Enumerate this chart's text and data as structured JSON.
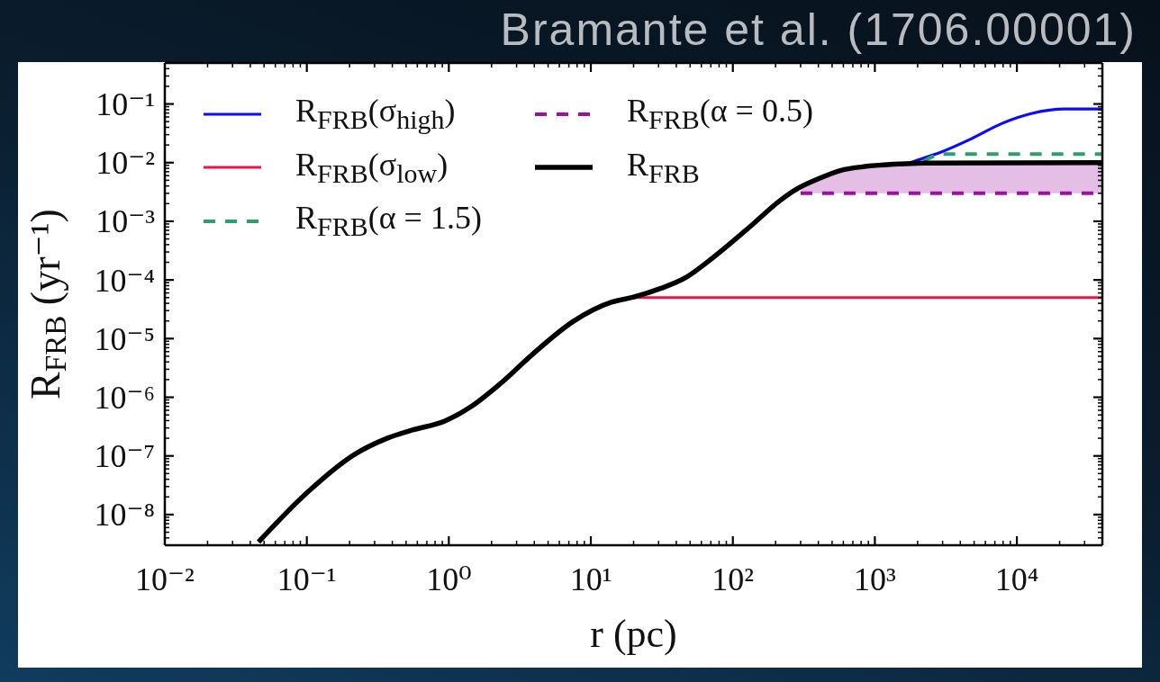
{
  "chart_data": {
    "type": "line",
    "ylabel": "R$_{FRB}$ (yr⁻¹)",
    "xlabel": "r (pc)",
    "annotations": [
      "Bramante et al. (1706.00001)"
    ],
    "log": "xy",
    "legend": "top left",
    "marker": "none",
    "xlim": [
      0.01,
      40000
    ],
    "ylim": [
      3e-09,
      0.5
    ],
    "xticks": [
      {
        "value": 0.01,
        "label": "10⁻²"
      },
      {
        "value": 0.02,
        "label": null
      },
      {
        "value": 0.03,
        "label": null
      },
      {
        "value": 0.04,
        "label": null
      },
      {
        "value": 0.05,
        "label": null
      },
      {
        "value": 0.06,
        "label": null
      },
      {
        "value": 0.07,
        "label": null
      },
      {
        "value": 0.08,
        "label": null
      },
      {
        "value": 0.09,
        "label": null
      },
      {
        "value": 0.1,
        "label": "10⁻¹"
      },
      {
        "value": 0.2,
        "label": null
      },
      {
        "value": 0.3,
        "label": null
      },
      {
        "value": 0.4,
        "label": null
      },
      {
        "value": 0.5,
        "label": null
      },
      {
        "value": 0.6,
        "label": null
      },
      {
        "value": 0.7,
        "label": null
      },
      {
        "value": 0.8,
        "label": null
      },
      {
        "value": 0.9,
        "label": null
      },
      {
        "value": 1,
        "label": "10⁰"
      },
      {
        "value": 2,
        "label": null
      },
      {
        "value": 3,
        "label": null
      },
      {
        "value": 4,
        "label": null
      },
      {
        "value": 5,
        "label": null
      },
      {
        "value": 6,
        "label": null
      },
      {
        "value": 7,
        "label": null
      },
      {
        "value": 8,
        "label": null
      },
      {
        "value": 9,
        "label": null
      },
      {
        "value": 10,
        "label": "10¹"
      },
      {
        "value": 20,
        "label": null
      },
      {
        "value": 30,
        "label": null
      },
      {
        "value": 40,
        "label": null
      },
      {
        "value": 50,
        "label": null
      },
      {
        "value": 60,
        "label": null
      },
      {
        "value": 70,
        "label": null
      },
      {
        "value": 80,
        "label": null
      },
      {
        "value": 90,
        "label": null
      },
      {
        "value": 100,
        "label": "10²"
      },
      {
        "value": 200,
        "label": null
      },
      {
        "value": 300,
        "label": null
      },
      {
        "value": 400,
        "label": null
      },
      {
        "value": 500,
        "label": null
      },
      {
        "value": 600,
        "label": null
      },
      {
        "value": 700,
        "label": null
      },
      {
        "value": 800,
        "label": null
      },
      {
        "value": 900,
        "label": null
      },
      {
        "value": 1000,
        "label": "10³"
      },
      {
        "value": 2000,
        "label": null
      },
      {
        "value": 3000,
        "label": null
      },
      {
        "value": 4000,
        "label": null
      },
      {
        "value": 5000,
        "label": null
      },
      {
        "value": 6000,
        "label": null
      },
      {
        "value": 7000,
        "label": null
      },
      {
        "value": 8000,
        "label": null
      },
      {
        "value": 9000,
        "label": null
      },
      {
        "value": 10000,
        "label": "10⁴"
      },
      {
        "value": 20000,
        "label": null
      },
      {
        "value": 30000,
        "label": null
      }
    ],
    "yticks": [
      {
        "value": 4e-09,
        "label": null
      },
      {
        "value": 5e-09,
        "label": null
      },
      {
        "value": 6e-09,
        "label": null
      },
      {
        "value": 7e-09,
        "label": null
      },
      {
        "value": 8e-09,
        "label": null
      },
      {
        "value": 9e-09,
        "label": null
      },
      {
        "value": 1e-08,
        "label": "10⁻⁸"
      },
      {
        "value": 2e-08,
        "label": null
      },
      {
        "value": 3e-08,
        "label": null
      },
      {
        "value": 4e-08,
        "label": null
      },
      {
        "value": 5e-08,
        "label": null
      },
      {
        "value": 6e-08,
        "label": null
      },
      {
        "value": 7e-08,
        "label": null
      },
      {
        "value": 8e-08,
        "label": null
      },
      {
        "value": 9e-08,
        "label": null
      },
      {
        "value": 1e-07,
        "label": "10⁻⁷"
      },
      {
        "value": 2e-07,
        "label": null
      },
      {
        "value": 3e-07,
        "label": null
      },
      {
        "value": 4e-07,
        "label": null
      },
      {
        "value": 5e-07,
        "label": null
      },
      {
        "value": 6e-07,
        "label": null
      },
      {
        "value": 7e-07,
        "label": null
      },
      {
        "value": 8e-07,
        "label": null
      },
      {
        "value": 9e-07,
        "label": null
      },
      {
        "value": 1e-06,
        "label": "10⁻⁶"
      },
      {
        "value": 2e-06,
        "label": null
      },
      {
        "value": 3e-06,
        "label": null
      },
      {
        "value": 4e-06,
        "label": null
      },
      {
        "value": 5e-06,
        "label": null
      },
      {
        "value": 6e-06,
        "label": null
      },
      {
        "value": 7e-06,
        "label": null
      },
      {
        "value": 8e-06,
        "label": null
      },
      {
        "value": 9e-06,
        "label": null
      },
      {
        "value": 1e-05,
        "label": "10⁻⁵"
      },
      {
        "value": 2e-05,
        "label": null
      },
      {
        "value": 3e-05,
        "label": null
      },
      {
        "value": 4e-05,
        "label": null
      },
      {
        "value": 5e-05,
        "label": null
      },
      {
        "value": 6e-05,
        "label": null
      },
      {
        "value": 7e-05,
        "label": null
      },
      {
        "value": 8e-05,
        "label": null
      },
      {
        "value": 9e-05,
        "label": null
      },
      {
        "value": 0.0001,
        "label": "10⁻⁴"
      },
      {
        "value": 0.0002,
        "label": null
      },
      {
        "value": 0.0003,
        "label": null
      },
      {
        "value": 0.0004,
        "label": null
      },
      {
        "value": 0.0005,
        "label": null
      },
      {
        "value": 0.0006,
        "label": null
      },
      {
        "value": 0.0007,
        "label": null
      },
      {
        "value": 0.0008,
        "label": null
      },
      {
        "value": 0.0009,
        "label": null
      },
      {
        "value": 0.001,
        "label": "10⁻³"
      },
      {
        "value": 0.002,
        "label": null
      },
      {
        "value": 0.003,
        "label": null
      },
      {
        "value": 0.004,
        "label": null
      },
      {
        "value": 0.005,
        "label": null
      },
      {
        "value": 0.006,
        "label": null
      },
      {
        "value": 0.007,
        "label": null
      },
      {
        "value": 0.008,
        "label": null
      },
      {
        "value": 0.009,
        "label": null
      },
      {
        "value": 0.01,
        "label": "10⁻²"
      },
      {
        "value": 0.02,
        "label": null
      },
      {
        "value": 0.03,
        "label": null
      },
      {
        "value": 0.04,
        "label": null
      },
      {
        "value": 0.05,
        "label": null
      },
      {
        "value": 0.06,
        "label": null
      },
      {
        "value": 0.07,
        "label": null
      },
      {
        "value": 0.08,
        "label": null
      },
      {
        "value": 0.09,
        "label": null
      },
      {
        "value": 0.1,
        "label": "10⁻¹"
      },
      {
        "value": 0.2,
        "label": null
      },
      {
        "value": 0.3,
        "label": null
      },
      {
        "value": 0.4,
        "label": null
      }
    ],
    "series": [
      {
        "name": "R$_{FRB}$(σ$_{high}$)",
        "color": "#0a0aff",
        "x": [
          1800,
          2030,
          2880,
          4760,
          7870,
          13000,
          21500,
          40000
        ],
        "values": [
          0.0101,
          0.0112,
          0.0149,
          0.0254,
          0.0467,
          0.0698,
          0.082,
          0.082
        ]
      },
      {
        "name": "R$_{FRB}$(σ$_{low}$)",
        "color": "#ea1546",
        "x": [
          20,
          40000
        ],
        "values": [
          5e-05,
          5e-05
        ]
      },
      {
        "name": "R$_{FRB}$(α = 1.5)",
        "color": "#2e9e6b",
        "line_style": "dashed",
        "x": [
          2200,
          3000,
          40000
        ],
        "values": [
          0.0105,
          0.014,
          0.014
        ]
      },
      {
        "name": "R$_{FRB}$(α = 0.5)",
        "color": "#a0109f",
        "line_style": "dashed",
        "x": [
          300,
          386,
          577,
          819,
          1355,
          2240,
          40000
        ],
        "values": [
          0.003,
          0.003,
          0.003,
          0.003,
          0.003,
          0.003,
          0.003
        ],
        "lower": [
          0.003,
          0.003,
          0.003,
          0.003,
          0.003,
          0.003,
          0.003
        ],
        "upper": [
          0.0038,
          0.0051,
          0.0074,
          0.0085,
          0.0094,
          0.0098,
          0.01
        ]
      },
      {
        "name": "R$_{FRB}$",
        "color": "#000000",
        "x": [
          0.0457,
          0.1,
          0.218,
          0.368,
          0.553,
          0.936,
          1.43,
          2.28,
          3.85,
          7.54,
          14.1,
          20,
          31.2,
          46.7,
          66.3,
          85.2,
          141,
          211,
          285,
          386,
          577,
          819,
          1355,
          2240,
          40000
        ],
        "values": [
          3.4e-09,
          2.34e-08,
          1.07e-07,
          2e-07,
          2.76e-07,
          3.93e-07,
          6.9e-07,
          1.67e-06,
          5.3e-06,
          1.97e-05,
          4.2e-05,
          5.1e-05,
          7.2e-05,
          0.00011,
          0.000203,
          0.00033,
          0.00093,
          0.00218,
          0.0036,
          0.0051,
          0.0074,
          0.0085,
          0.0094,
          0.0098,
          0.01
        ]
      }
    ]
  }
}
